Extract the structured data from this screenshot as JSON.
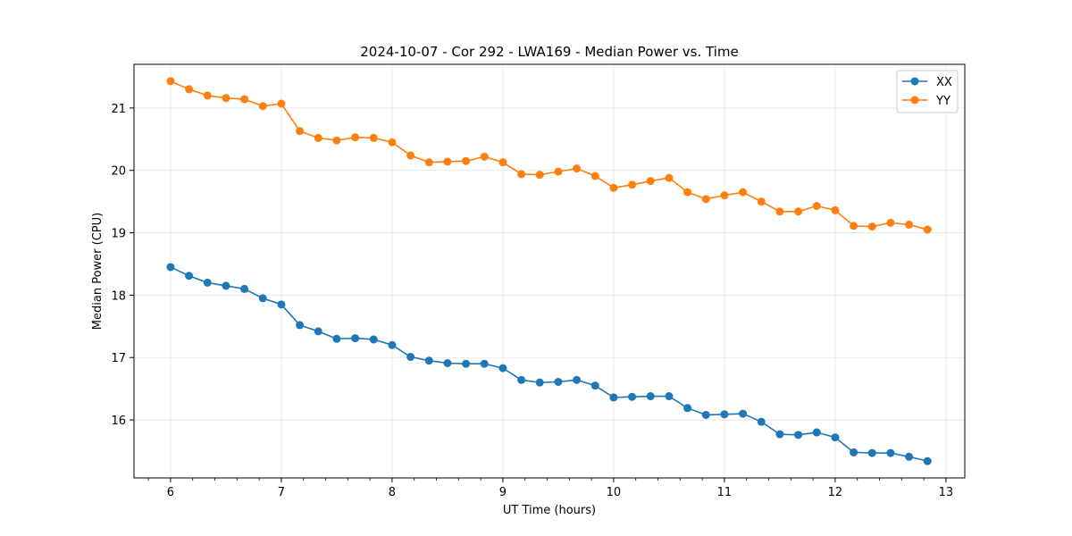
{
  "chart_data": {
    "type": "line",
    "title": "2024-10-07 - Cor 292 - LWA169 - Median Power vs. Time",
    "xlabel": "UT Time (hours)",
    "ylabel": "Median Power (CPU)",
    "xlim": [
      5.67,
      13.17
    ],
    "ylim": [
      15.07,
      21.7
    ],
    "xticks": [
      6,
      7,
      8,
      9,
      10,
      11,
      12,
      13
    ],
    "yticks": [
      16,
      17,
      18,
      19,
      20,
      21
    ],
    "grid": true,
    "legend_position": "top-right",
    "x": [
      6.0,
      6.1667,
      6.3333,
      6.5,
      6.6667,
      6.8333,
      7.0,
      7.1667,
      7.3333,
      7.5,
      7.6667,
      7.8333,
      8.0,
      8.1667,
      8.3333,
      8.5,
      8.6667,
      8.8333,
      9.0,
      9.1667,
      9.3333,
      9.5,
      9.6667,
      9.8333,
      10.0,
      10.1667,
      10.3333,
      10.5,
      10.6667,
      10.8333,
      11.0,
      11.1667,
      11.3333,
      11.5,
      11.6667,
      11.8333,
      12.0,
      12.1667,
      12.3333,
      12.5,
      12.6667,
      12.8333
    ],
    "series": [
      {
        "name": "XX",
        "color": "#1f77b4",
        "values": [
          18.45,
          18.31,
          18.2,
          18.15,
          18.1,
          17.95,
          17.85,
          17.52,
          17.42,
          17.3,
          17.31,
          17.29,
          17.2,
          17.01,
          16.95,
          16.91,
          16.9,
          16.9,
          16.83,
          16.64,
          16.6,
          16.61,
          16.64,
          16.55,
          16.36,
          16.37,
          16.38,
          16.38,
          16.19,
          16.08,
          16.09,
          16.1,
          15.97,
          15.77,
          15.76,
          15.8,
          15.72,
          15.48,
          15.47,
          15.47,
          15.41,
          15.34
        ]
      },
      {
        "name": "YY",
        "color": "#ff7f0e",
        "values": [
          21.43,
          21.3,
          21.2,
          21.16,
          21.14,
          21.03,
          21.07,
          20.63,
          20.52,
          20.48,
          20.53,
          20.52,
          20.45,
          20.24,
          20.13,
          20.14,
          20.15,
          20.22,
          20.13,
          19.94,
          19.93,
          19.98,
          20.03,
          19.91,
          19.72,
          19.77,
          19.83,
          19.88,
          19.65,
          19.54,
          19.6,
          19.65,
          19.5,
          19.34,
          19.34,
          19.43,
          19.36,
          19.11,
          19.1,
          19.16,
          19.13,
          19.05
        ]
      }
    ]
  }
}
